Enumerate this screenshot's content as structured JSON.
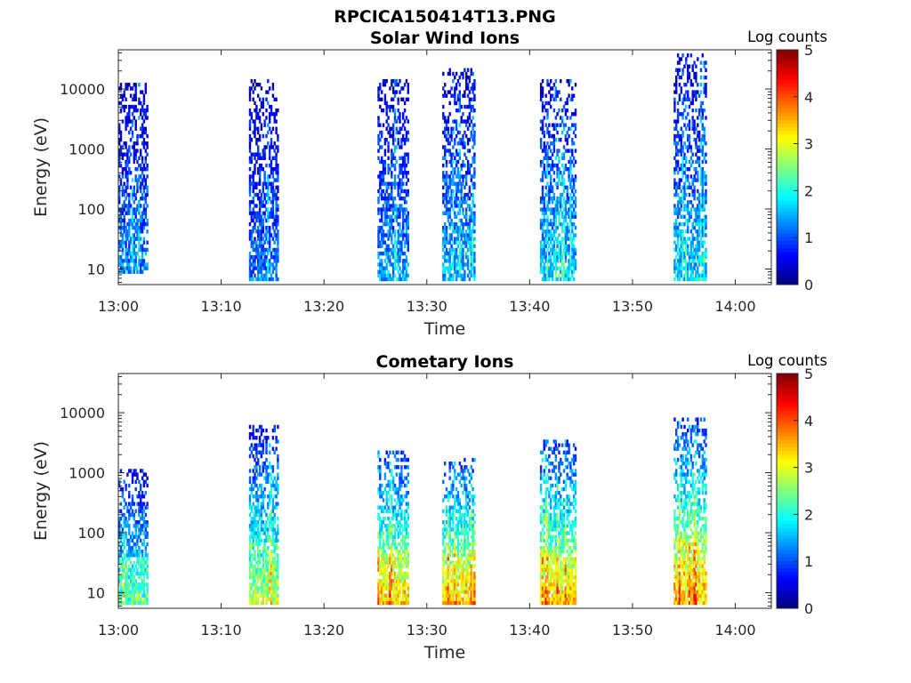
{
  "figure_title": "RPCICA150414T13.PNG",
  "chart_data": [
    {
      "type": "heatmap",
      "title": "Solar Wind Ions",
      "xlabel": "Time",
      "ylabel": "Energy (eV)",
      "x_ticks": [
        "13:00",
        "13:10",
        "13:20",
        "13:30",
        "13:40",
        "13:50",
        "14:00"
      ],
      "y_ticks": [
        "10",
        "100",
        "1000",
        "10000"
      ],
      "y_scale": "log",
      "ylim": [
        5.5,
        45000
      ],
      "xlim_minutes": [
        0,
        63.5
      ],
      "colorbar": {
        "label": "Log counts",
        "ticks": [
          "0",
          "1",
          "2",
          "3",
          "4",
          "5"
        ],
        "range": [
          0,
          5
        ],
        "colormap": "jet"
      },
      "bursts": [
        {
          "start": 0.0,
          "end": 2.8,
          "emin": 8,
          "emax": 12000,
          "level": 1.1
        },
        {
          "start": 12.7,
          "end": 15.5,
          "emin": 6,
          "emax": 14000,
          "level": 1.0
        },
        {
          "start": 25.2,
          "end": 28.3,
          "emin": 6,
          "emax": 15000,
          "level": 1.2
        },
        {
          "start": 31.5,
          "end": 34.7,
          "emin": 6,
          "emax": 22000,
          "level": 1.3
        },
        {
          "start": 41.0,
          "end": 44.5,
          "emin": 6,
          "emax": 15000,
          "level": 1.4
        },
        {
          "start": 54.0,
          "end": 57.2,
          "emin": 6,
          "emax": 40000,
          "level": 1.4
        }
      ],
      "grid": false
    },
    {
      "type": "heatmap",
      "title": "Cometary Ions",
      "xlabel": "Time",
      "ylabel": "Energy (eV)",
      "x_ticks": [
        "13:00",
        "13:10",
        "13:20",
        "13:30",
        "13:40",
        "13:50",
        "14:00"
      ],
      "y_ticks": [
        "10",
        "100",
        "1000",
        "10000"
      ],
      "y_scale": "log",
      "ylim": [
        5.5,
        45000
      ],
      "xlim_minutes": [
        0,
        63.5
      ],
      "colorbar": {
        "label": "Log counts",
        "ticks": [
          "0",
          "1",
          "2",
          "3",
          "4",
          "5"
        ],
        "range": [
          0,
          5
        ],
        "colormap": "jet"
      },
      "bursts": [
        {
          "start": 0.0,
          "end": 2.8,
          "emin": 6,
          "emax": 1200,
          "level": 1.8
        },
        {
          "start": 12.7,
          "end": 15.5,
          "emin": 6,
          "emax": 6500,
          "level": 2.1
        },
        {
          "start": 25.2,
          "end": 28.3,
          "emin": 6,
          "emax": 2500,
          "level": 2.6
        },
        {
          "start": 31.5,
          "end": 34.7,
          "emin": 6,
          "emax": 1800,
          "level": 2.7
        },
        {
          "start": 41.0,
          "end": 44.5,
          "emin": 6,
          "emax": 3500,
          "level": 2.6
        },
        {
          "start": 54.0,
          "end": 57.2,
          "emin": 6,
          "emax": 8500,
          "level": 2.7
        }
      ],
      "grid": false
    }
  ]
}
